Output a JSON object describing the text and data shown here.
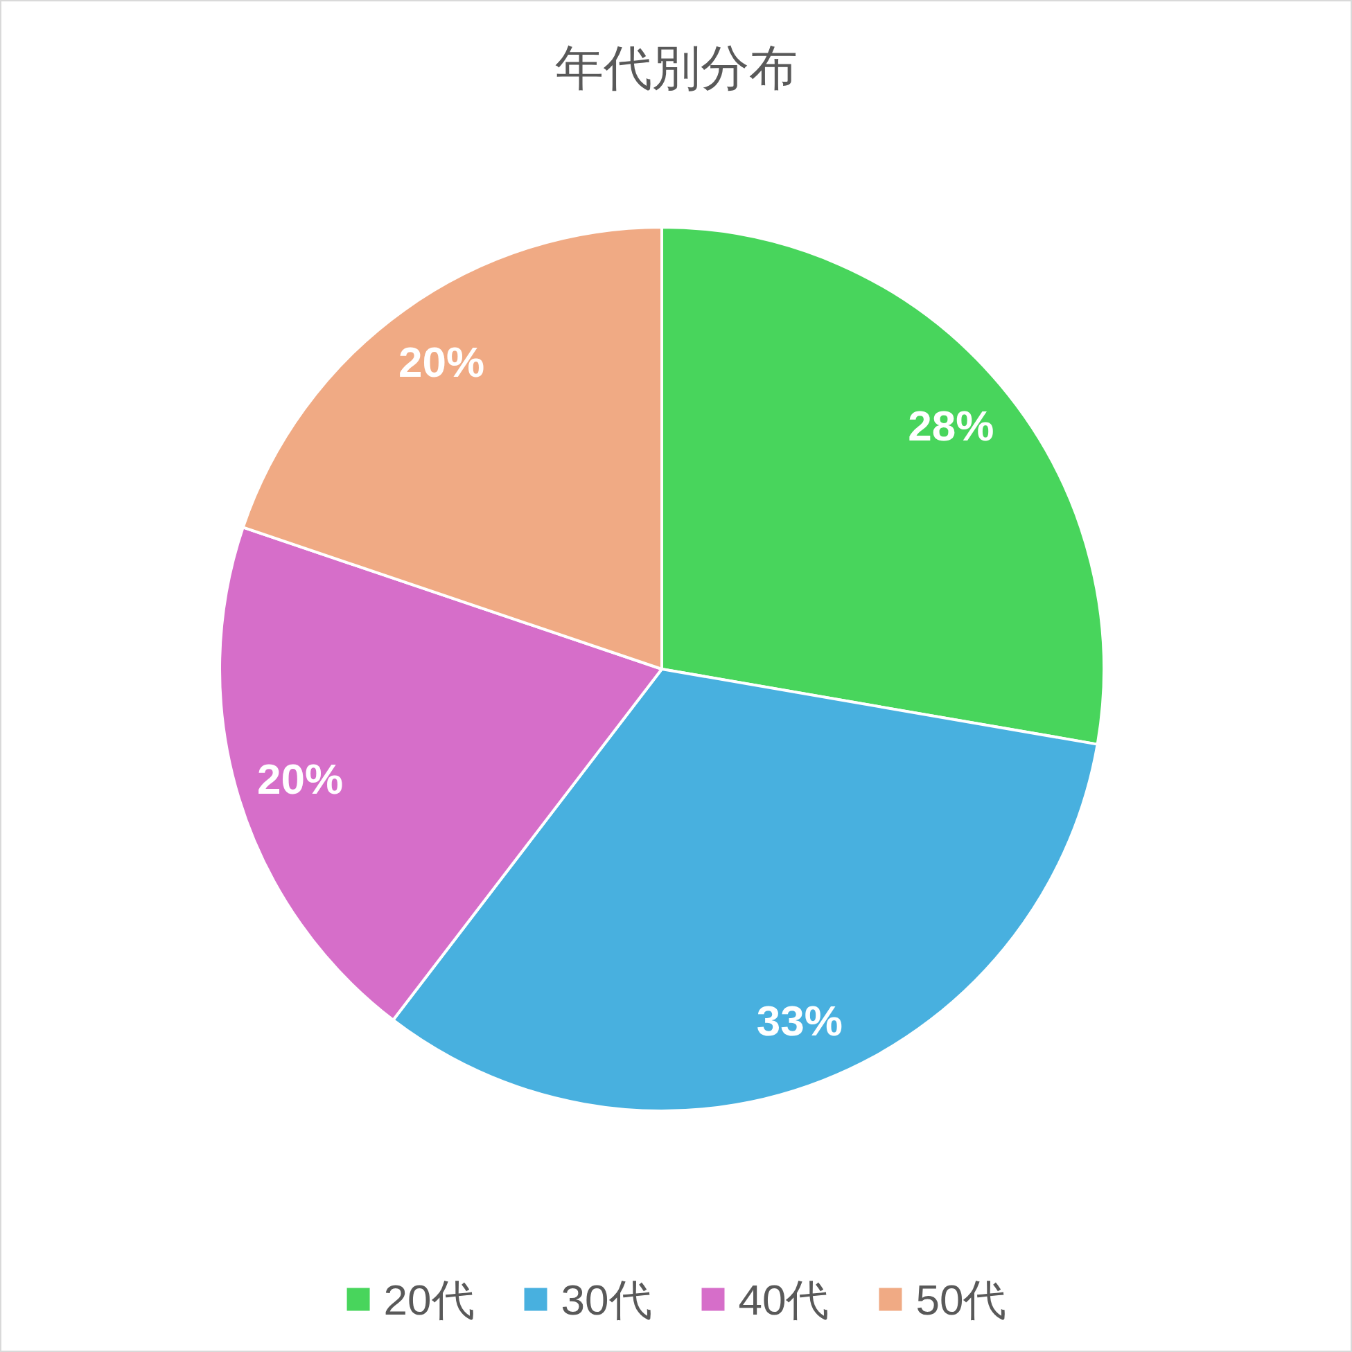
{
  "chart_data": {
    "type": "pie",
    "title": "年代別分布",
    "categories": [
      "20代",
      "30代",
      "40代",
      "50代"
    ],
    "values": [
      28,
      33,
      20,
      20
    ],
    "value_labels": [
      "28%",
      "33%",
      "20%",
      "20%"
    ],
    "colors": [
      "#48d55c",
      "#48b0df",
      "#d66ec9",
      "#f0aa84"
    ],
    "legend": "bottom"
  }
}
